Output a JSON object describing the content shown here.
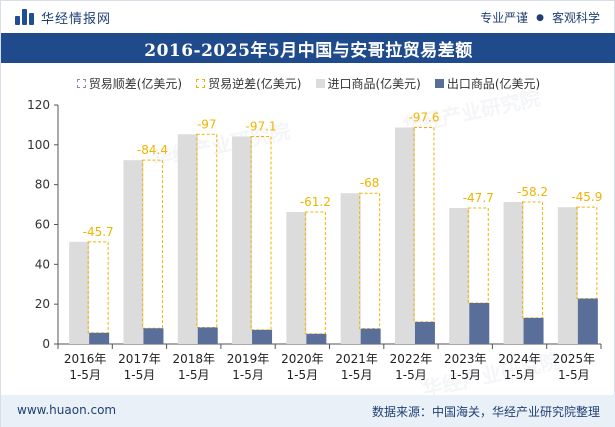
{
  "header": {
    "brand": "华经情报网",
    "tag1": "专业严谨",
    "tag_sep": "●",
    "tag2": "客观科学"
  },
  "title": "2016-2025年5月中国与安哥拉贸易差额",
  "legend": {
    "surplus": "贸易顺差(亿美元)",
    "deficit": "贸易逆差(亿美元)",
    "import": "进口商品(亿美元)",
    "export": "出口商品(亿美元)"
  },
  "colors": {
    "import": "#dcdcdc",
    "export": "#5a6e9a",
    "deficit": "#f0b400",
    "surplus": "#7f8fb4",
    "label": "#f0b400"
  },
  "chart_data": {
    "type": "bar",
    "categories": [
      "2016年\n1-5月",
      "2017年\n1-5月",
      "2018年\n1-5月",
      "2019年\n1-5月",
      "2020年\n1-5月",
      "2021年\n1-5月",
      "2022年\n1-5月",
      "2023年\n1-5月",
      "2024年\n1-5月",
      "2025年\n1-5月"
    ],
    "series": [
      {
        "name": "进口商品(亿美元)",
        "values": [
          51.3,
          92.3,
          105.3,
          104.2,
          66.3,
          75.7,
          108.7,
          68.3,
          71.3,
          68.7
        ]
      },
      {
        "name": "出口商品(亿美元)",
        "values": [
          5.6,
          7.9,
          8.3,
          7.1,
          5.1,
          7.7,
          11.1,
          20.6,
          13.1,
          22.8
        ]
      },
      {
        "name": "贸易逆差(亿美元)",
        "values": [
          -45.7,
          -84.4,
          -97,
          -97.1,
          -61.2,
          -68,
          -97.6,
          -47.7,
          -58.2,
          -45.9
        ]
      },
      {
        "name": "贸易顺差(亿美元)",
        "values": [
          null,
          null,
          null,
          null,
          null,
          null,
          null,
          null,
          null,
          null
        ]
      }
    ],
    "value_labels": [
      "-45.7",
      "-84.4",
      "-97",
      "-97.1",
      "-61.2",
      "-68",
      "-97.6",
      "-47.7",
      "-58.2",
      "-45.9"
    ],
    "ylim": [
      0,
      120
    ],
    "yticks": [
      0,
      20,
      40,
      60,
      80,
      100,
      120
    ],
    "xlabel": "",
    "ylabel": "",
    "grid": false,
    "legend_position": "top"
  },
  "footer": {
    "website": "www.huaon.com",
    "source": "数据来源：中国海关，华经产业研究院整理"
  },
  "watermark": "华经产业研究院"
}
